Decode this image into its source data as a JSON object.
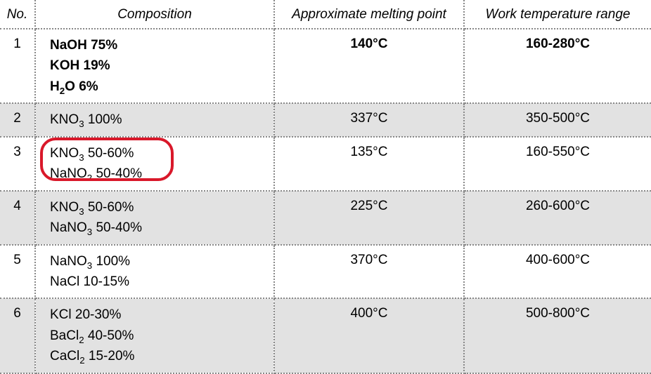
{
  "table": {
    "columns": [
      "No.",
      "Composition",
      "Approximate melting point",
      "Work temperature range"
    ],
    "header_fontsize": 19,
    "body_fontsize": 19,
    "dotted_border_color": "#888888",
    "even_row_bg": "#e2e2e2",
    "odd_row_bg": "#ffffff",
    "highlight_border_color": "#d9182a",
    "rows": [
      {
        "no": "1",
        "composition": [
          "NaOH 75%",
          "KOH 19%",
          "H₂O 6%"
        ],
        "composition_raw": [
          {
            "text": "NaOH 75%"
          },
          {
            "text": "KOH 19%"
          },
          {
            "prefix": "H",
            "sub": "2",
            "suffix": "O 6%"
          }
        ],
        "mp": "140°C",
        "wtr": "160-280°C",
        "bold": true,
        "highlighted": false
      },
      {
        "no": "2",
        "composition": [
          "KNO₃ 100%"
        ],
        "composition_raw": [
          {
            "prefix": "KNO",
            "sub": "3",
            "suffix": " 100%"
          }
        ],
        "mp": "337°C",
        "wtr": "350-500°C",
        "bold": false,
        "highlighted": false
      },
      {
        "no": "3",
        "composition": [
          "KNO₃ 50-60%",
          "NaNO₂ 50-40%"
        ],
        "composition_raw": [
          {
            "prefix": "KNO",
            "sub": "3",
            "suffix": " 50-60%"
          },
          {
            "prefix": "NaNO",
            "sub": "2",
            "suffix": " 50-40%"
          }
        ],
        "mp": "135°C",
        "wtr": "160-550°C",
        "bold": false,
        "highlighted": true
      },
      {
        "no": "4",
        "composition": [
          "KNO₃ 50-60%",
          "NaNO₃ 50-40%"
        ],
        "composition_raw": [
          {
            "prefix": "KNO",
            "sub": "3",
            "suffix": " 50-60%"
          },
          {
            "prefix": "NaNO",
            "sub": "3",
            "suffix": " 50-40%"
          }
        ],
        "mp": "225°C",
        "wtr": "260-600°C",
        "bold": false,
        "highlighted": false
      },
      {
        "no": "5",
        "composition": [
          "NaNO₃ 100%",
          "NaCl 10-15%"
        ],
        "composition_raw": [
          {
            "prefix": "NaNO",
            "sub": "3",
            "suffix": " 100%"
          },
          {
            "text": "NaCl 10-15%"
          }
        ],
        "mp": "370°C",
        "wtr": "400-600°C",
        "bold": false,
        "highlighted": false
      },
      {
        "no": "6",
        "composition": [
          "KCl 20-30%",
          "BaCl₂ 40-50%",
          "CaCl₂ 15-20%"
        ],
        "composition_raw": [
          {
            "text": "KCl 20-30%"
          },
          {
            "prefix": "BaCl",
            "sub": "2",
            "suffix": " 40-50%"
          },
          {
            "prefix": "CaCl",
            "sub": "2",
            "suffix": " 15-20%"
          }
        ],
        "mp": "400°C",
        "wtr": "500-800°C",
        "bold": false,
        "highlighted": false
      }
    ]
  }
}
